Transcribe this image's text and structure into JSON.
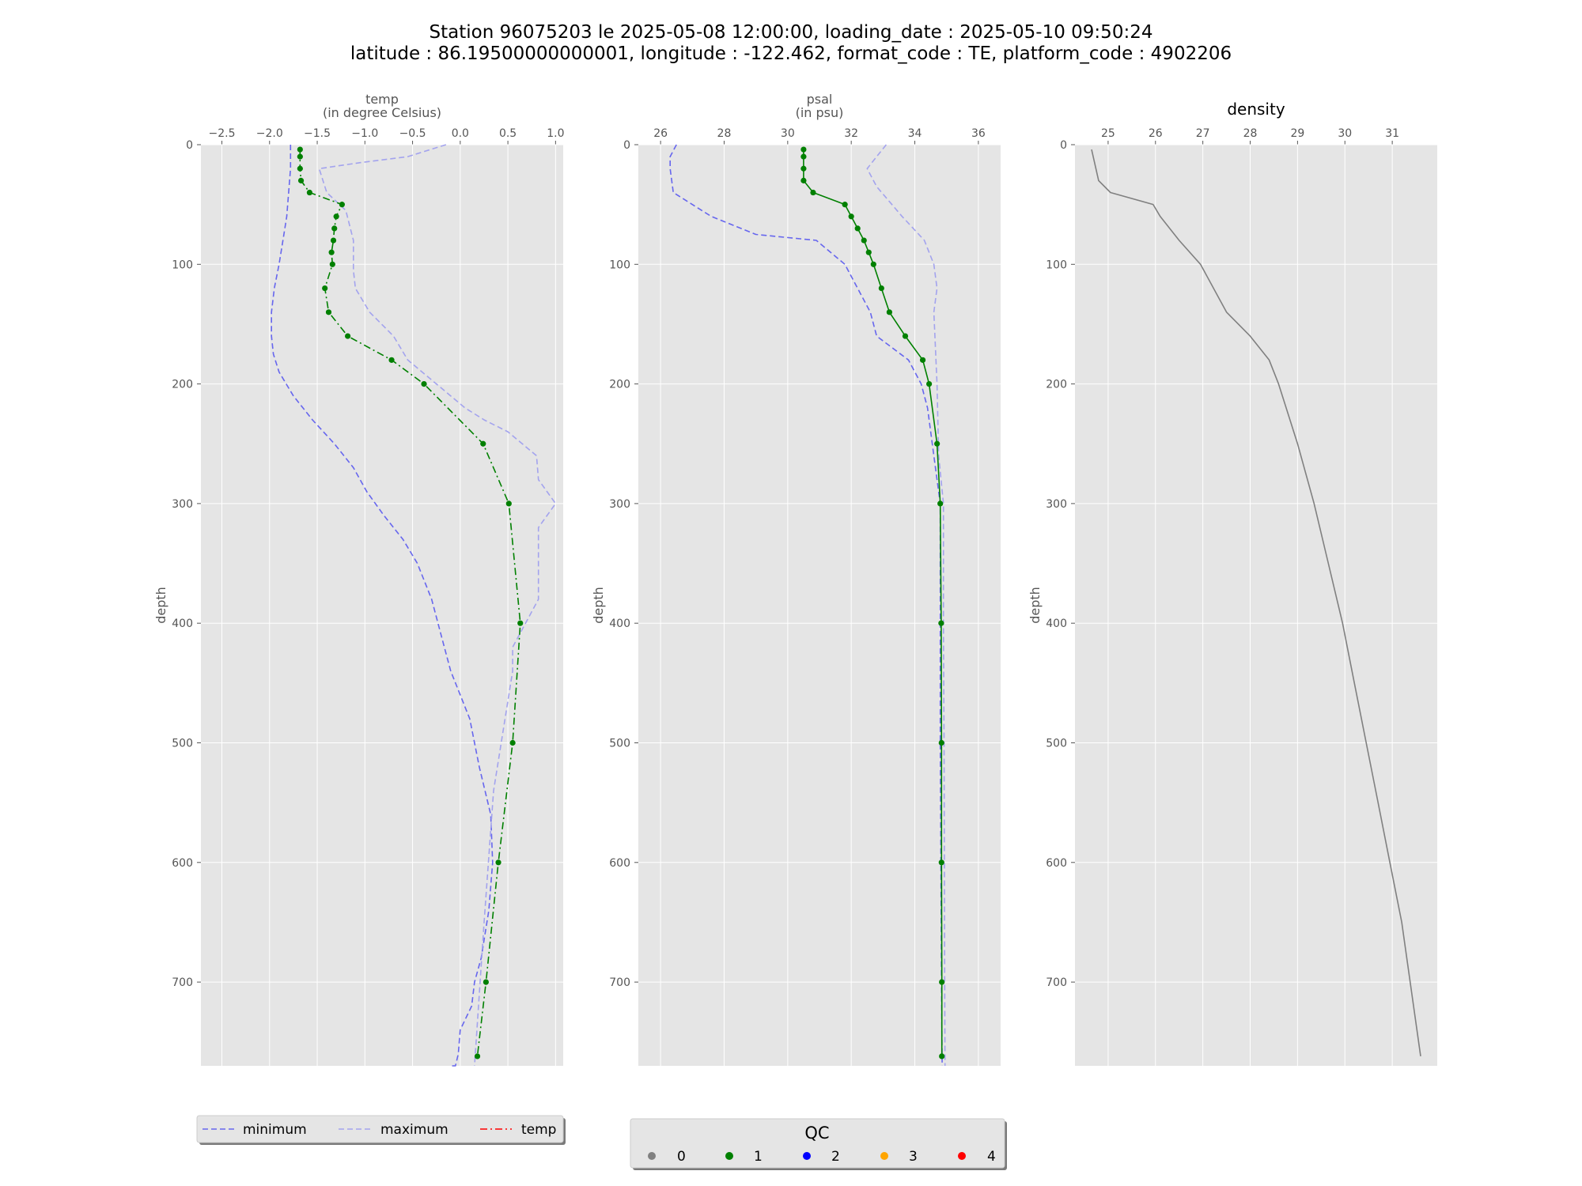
{
  "title": {
    "line1": "Station 96075203 le 2025-05-08 12:00:00, loading_date : 2025-05-10 09:50:24",
    "line2": "latitude : 86.19500000000001, longitude : -122.462, format_code : TE, platform_code : 4902206"
  },
  "colors": {
    "panel_bg": "#e5e5e5",
    "grid": "#ffffff",
    "minimum": "#6666ee",
    "maximum": "#a3a3ee",
    "profile": "#008000",
    "density": "#808080",
    "qc0": "#808080",
    "qc1": "#008000",
    "qc2": "#0000ff",
    "qc3": "#ffa500",
    "qc4": "#ff0000",
    "temp_legend": "#ff0000"
  },
  "chart_data": [
    {
      "type": "line",
      "title": "temp",
      "xlabel_line1": "temp",
      "xlabel_line2": "(in degree Celsius)",
      "ylabel": "depth",
      "xlim": [
        -2.72,
        1.08
      ],
      "ylim": [
        770,
        0
      ],
      "y_inverted": true,
      "x_ticks": [
        -2.5,
        -2.0,
        -1.5,
        -1.0,
        -0.5,
        0.0,
        0.5,
        1.0
      ],
      "x_tick_labels": [
        "−2.5",
        "−2.0",
        "−1.5",
        "−1.0",
        "−0.5",
        "0.0",
        "0.5",
        "1.0"
      ],
      "y_ticks": [
        0,
        100,
        200,
        300,
        400,
        500,
        600,
        700
      ],
      "y_tick_labels": [
        "0",
        "100",
        "200",
        "300",
        "400",
        "500",
        "600",
        "700"
      ],
      "grid": true,
      "series": [
        {
          "name": "minimum",
          "style": "dashed",
          "color_key": "minimum",
          "x": [
            -1.78,
            -1.78,
            -1.8,
            -1.82,
            -1.86,
            -1.9,
            -1.95,
            -1.98,
            -1.98,
            -1.96,
            -1.9,
            -1.75,
            -1.55,
            -1.32,
            -1.12,
            -0.98,
            -0.8,
            -0.6,
            -0.45,
            -0.3,
            -0.2,
            -0.1,
            0.1,
            0.2,
            0.32,
            0.34,
            0.3,
            0.22,
            0.15,
            0.12,
            0.0,
            -0.02,
            -0.05,
            -0.08,
            -0.1
          ],
          "y": [
            0,
            20,
            40,
            60,
            80,
            100,
            120,
            140,
            160,
            175,
            190,
            210,
            230,
            250,
            270,
            290,
            310,
            330,
            350,
            380,
            410,
            440,
            480,
            520,
            560,
            600,
            640,
            680,
            700,
            720,
            740,
            760,
            770,
            770,
            770
          ]
        },
        {
          "name": "maximum",
          "style": "dashed",
          "color_key": "maximum",
          "x": [
            -0.15,
            -0.55,
            -1.05,
            -1.48,
            -1.4,
            -1.2,
            -1.12,
            -1.12,
            -1.1,
            -0.95,
            -0.7,
            -0.55,
            -0.25,
            0.05,
            0.25,
            0.5,
            0.8,
            0.82,
            1.0,
            0.82,
            0.82,
            0.55,
            0.55,
            0.35,
            0.25,
            0.15
          ],
          "y": [
            0,
            10,
            15,
            20,
            40,
            55,
            80,
            105,
            120,
            140,
            160,
            180,
            200,
            220,
            230,
            240,
            260,
            280,
            300,
            320,
            380,
            420,
            440,
            540,
            650,
            770
          ]
        },
        {
          "name": "temp",
          "style": "dashdot",
          "color_key": "profile",
          "markers": "qc",
          "x": [
            -1.68,
            -1.68,
            -1.68,
            -1.67,
            -1.58,
            -1.24,
            -1.3,
            -1.32,
            -1.33,
            -1.35,
            -1.34,
            -1.42,
            -1.38,
            -1.18,
            -0.72,
            -0.38,
            0.24,
            0.51,
            0.63,
            0.55,
            0.4,
            0.27,
            0.18
          ],
          "y": [
            4,
            10,
            20,
            30,
            40,
            50,
            60,
            70,
            80,
            90,
            100,
            120,
            140,
            160,
            180,
            200,
            250,
            300,
            400,
            500,
            600,
            700,
            762
          ],
          "qc": [
            1,
            1,
            1,
            1,
            1,
            1,
            1,
            1,
            1,
            1,
            1,
            1,
            1,
            1,
            1,
            1,
            1,
            1,
            1,
            1,
            1,
            1,
            1
          ]
        }
      ]
    },
    {
      "type": "line",
      "title": "psal",
      "xlabel_line1": "psal",
      "xlabel_line2": "(in psu)",
      "ylabel": "depth",
      "xlim": [
        25.3,
        36.7
      ],
      "ylim": [
        770,
        0
      ],
      "y_inverted": true,
      "x_ticks": [
        26,
        28,
        30,
        32,
        34,
        36
      ],
      "x_tick_labels": [
        "26",
        "28",
        "30",
        "32",
        "34",
        "36"
      ],
      "y_ticks": [
        0,
        100,
        200,
        300,
        400,
        500,
        600,
        700
      ],
      "y_tick_labels": [
        "0",
        "100",
        "200",
        "300",
        "400",
        "500",
        "600",
        "700"
      ],
      "grid": true,
      "series": [
        {
          "name": "minimum",
          "style": "dashed",
          "color_key": "minimum",
          "x": [
            26.5,
            26.3,
            26.3,
            26.4,
            27.6,
            29.0,
            30.9,
            31.8,
            32.2,
            32.6,
            32.8,
            33.8,
            34.2,
            34.4,
            34.5,
            34.6,
            34.7,
            34.8,
            34.8,
            34.8,
            34.82,
            34.84,
            34.86
          ],
          "y": [
            0,
            10,
            20,
            40,
            60,
            75,
            80,
            100,
            120,
            140,
            160,
            180,
            200,
            220,
            240,
            260,
            280,
            300,
            400,
            500,
            600,
            700,
            770
          ]
        },
        {
          "name": "maximum",
          "style": "dashed",
          "color_key": "maximum",
          "x": [
            33.1,
            32.8,
            32.5,
            32.8,
            33.6,
            34.3,
            34.6,
            34.7,
            34.6,
            34.7,
            34.75,
            34.9,
            34.9,
            34.92,
            34.94,
            34.95
          ],
          "y": [
            0,
            10,
            20,
            35,
            60,
            80,
            100,
            120,
            140,
            200,
            260,
            300,
            400,
            500,
            700,
            770
          ]
        },
        {
          "name": "psal",
          "style": "solid",
          "color_key": "profile",
          "markers": "qc",
          "x": [
            30.5,
            30.5,
            30.5,
            30.5,
            30.8,
            31.8,
            32.0,
            32.2,
            32.4,
            32.55,
            32.7,
            32.95,
            33.2,
            33.7,
            34.25,
            34.45,
            34.7,
            34.8,
            34.83,
            34.84,
            34.84,
            34.85,
            34.85
          ],
          "y": [
            4,
            10,
            20,
            30,
            40,
            50,
            60,
            70,
            80,
            90,
            100,
            120,
            140,
            160,
            180,
            200,
            250,
            300,
            400,
            500,
            600,
            700,
            762
          ],
          "qc": [
            1,
            1,
            1,
            1,
            1,
            1,
            1,
            1,
            1,
            1,
            1,
            1,
            1,
            1,
            1,
            1,
            1,
            1,
            1,
            1,
            1,
            1,
            1
          ]
        }
      ]
    },
    {
      "type": "line",
      "title": "density",
      "xlabel_line1": "",
      "xlabel_line2": "",
      "ylabel": "depth",
      "xlim": [
        24.3,
        31.95
      ],
      "ylim": [
        770,
        0
      ],
      "y_inverted": true,
      "x_ticks": [
        25,
        26,
        27,
        28,
        29,
        30,
        31
      ],
      "x_tick_labels": [
        "25",
        "26",
        "27",
        "28",
        "29",
        "30",
        "31"
      ],
      "y_ticks": [
        0,
        100,
        200,
        300,
        400,
        500,
        600,
        700
      ],
      "y_tick_labels": [
        "0",
        "100",
        "200",
        "300",
        "400",
        "500",
        "600",
        "700"
      ],
      "grid": true,
      "series": [
        {
          "name": "density",
          "style": "solid",
          "color_key": "density",
          "x": [
            24.65,
            24.8,
            25.05,
            25.95,
            26.1,
            26.5,
            26.95,
            27.5,
            28.0,
            28.4,
            28.6,
            29.0,
            29.35,
            29.65,
            29.95,
            30.2,
            30.45,
            30.7,
            30.95,
            31.2,
            31.6
          ],
          "y": [
            4,
            30,
            40,
            50,
            60,
            80,
            100,
            140,
            160,
            180,
            200,
            250,
            300,
            350,
            400,
            450,
            500,
            550,
            600,
            650,
            762
          ]
        }
      ]
    }
  ],
  "legend_lines": {
    "items": [
      {
        "label": "minimum",
        "color_key": "minimum",
        "style": "dashed"
      },
      {
        "label": "maximum",
        "color_key": "maximum",
        "style": "dashed"
      },
      {
        "label": "temp",
        "color_key": "temp_legend",
        "style": "dashdot"
      }
    ]
  },
  "legend_qc": {
    "title": "QC",
    "items": [
      {
        "label": "0",
        "color_key": "qc0"
      },
      {
        "label": "1",
        "color_key": "qc1"
      },
      {
        "label": "2",
        "color_key": "qc2"
      },
      {
        "label": "3",
        "color_key": "qc3"
      },
      {
        "label": "4",
        "color_key": "qc4"
      }
    ]
  }
}
